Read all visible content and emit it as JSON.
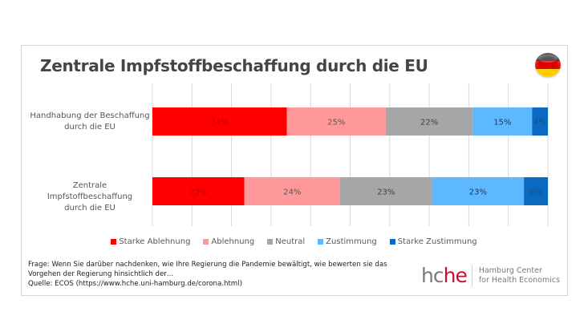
{
  "chart_data": {
    "type": "bar",
    "orientation": "horizontal",
    "stacked": true,
    "percent_stacked": true,
    "title": "Zentrale Impfstoffbeschaffung durch die EU",
    "categories": [
      [
        "Handhabung der Beschaffung",
        "durch die EU"
      ],
      [
        "Zentrale Impfstoffbeschaffung",
        "durch die EU"
      ]
    ],
    "series": [
      {
        "name": "Starke Ablehnung",
        "color": "#ff0000",
        "label_color": "#c00000",
        "values": [
          34,
          23
        ]
      },
      {
        "name": "Ablehnung",
        "color": "#ff9999",
        "label_color": "#595959",
        "values": [
          25,
          24
        ]
      },
      {
        "name": "Neutral",
        "color": "#a6a6a6",
        "label_color": "#404040",
        "values": [
          22,
          23
        ]
      },
      {
        "name": "Zustimmung",
        "color": "#5cb8ff",
        "label_color": "#1f3864",
        "values": [
          15,
          23
        ]
      },
      {
        "name": "Starke Zustimmung",
        "color": "#0a6ac0",
        "label_color": "#1f4e79",
        "values": [
          4,
          6
        ]
      }
    ],
    "value_suffix": "%",
    "xlim": [
      0,
      100
    ],
    "grid": true,
    "grid_divisions": 10,
    "legend_position": "bottom"
  },
  "header": {
    "flag": "germany-flag"
  },
  "footnote": {
    "question": "Frage: Wenn Sie darüber nachdenken, wie Ihre Regierung die Pandemie bewältigt, wie bewerten sie das Vorgehen der Regierung hinsichtlich der…",
    "source": "Quelle: ECOS (https://www.hche.uni-hamburg.de/corona.html)"
  },
  "logo": {
    "mark_hc": "hc",
    "mark_he": "he",
    "line1": "Hamburg Center",
    "line2": "for Health Economics"
  }
}
